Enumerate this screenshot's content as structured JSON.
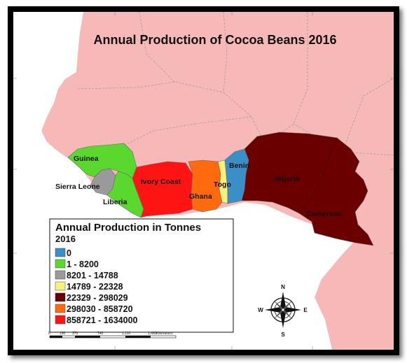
{
  "title": "Annual Production of Cocoa Beans 2016",
  "colors": {
    "land": "#f7b8b8",
    "sea": "#ffffff",
    "border": "#9a9a9a",
    "cls_0": "#3a8fc9",
    "cls_1": "#5ad82d",
    "cls_2": "#9a9a9a",
    "cls_3": "#f7f07a",
    "cls_4": "#6b0000",
    "cls_5": "#ff6a0f",
    "cls_6": "#ff1414"
  },
  "countries": [
    {
      "name": "Guinea",
      "class": "1 - 8200"
    },
    {
      "name": "Sierra Leone",
      "class": "8201 - 14788"
    },
    {
      "name": "Liberia",
      "class": "1 - 8200"
    },
    {
      "name": "Ivory Coast",
      "class": "858721 - 1634000"
    },
    {
      "name": "Ghana",
      "class": "298030 - 858720"
    },
    {
      "name": "Togo",
      "class": "14789 - 22328"
    },
    {
      "name": "Benin",
      "class": "0"
    },
    {
      "name": "Nigeria",
      "class": "22329 - 298029"
    },
    {
      "name": "Cameroon",
      "class": "22329 - 298029"
    }
  ],
  "legend": {
    "title": "Annual Production in Tonnes",
    "subtitle": "2016",
    "items": [
      {
        "label": "0",
        "color": "#3a8fc9"
      },
      {
        "label": "1 - 8200",
        "color": "#5ad82d"
      },
      {
        "label": "8201 - 14788",
        "color": "#9a9a9a"
      },
      {
        "label": "14789 - 22328",
        "color": "#f7f07a"
      },
      {
        "label": "22329 - 298029",
        "color": "#6b0000"
      },
      {
        "label": "298030 - 858720",
        "color": "#ff6a0f"
      },
      {
        "label": "858721 - 1634000",
        "color": "#ff1414"
      }
    ]
  },
  "scale_bar": {
    "ticks": [
      "0",
      "190",
      "370",
      "740",
      "1,110",
      "1,480"
    ],
    "unit": "Kilometers"
  },
  "compass": {
    "n": "N",
    "s": "S",
    "e": "E",
    "w": "W"
  }
}
